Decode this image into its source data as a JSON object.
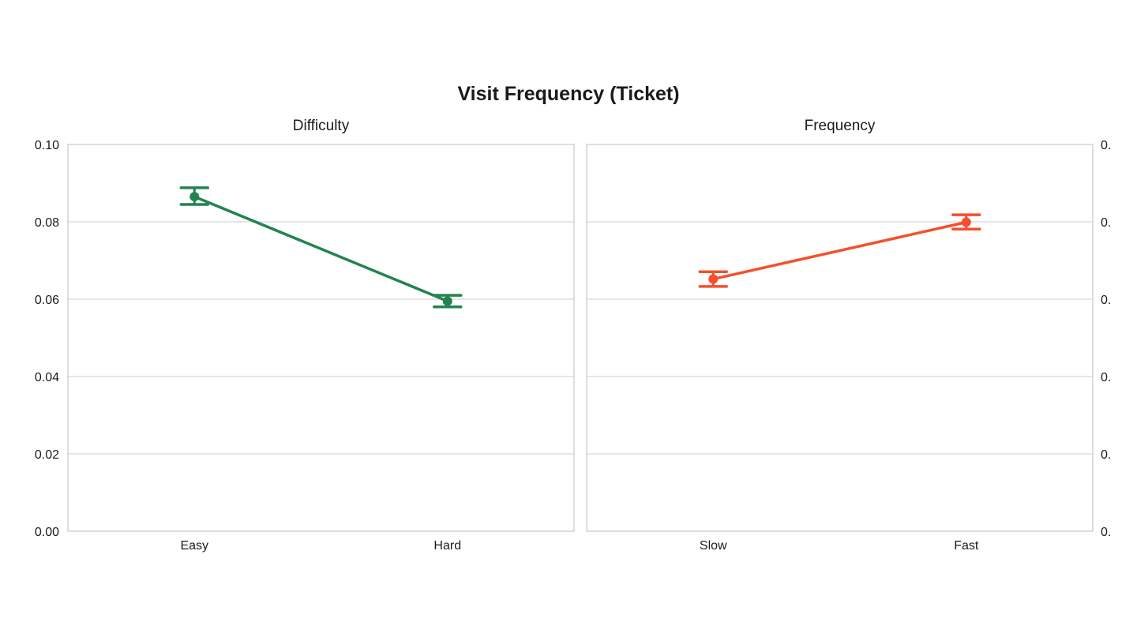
{
  "figure": {
    "title": "Visit Frequency (Ticket)"
  },
  "chart_data": [
    {
      "type": "line",
      "title": "Difficulty",
      "categories": [
        "Easy",
        "Hard"
      ],
      "values": [
        0.0865,
        0.0595
      ],
      "error_low": [
        0.0845,
        0.058
      ],
      "error_high": [
        0.0888,
        0.061
      ],
      "ylim": [
        0,
        0.1
      ],
      "yticks": [
        "0.00",
        "0.02",
        "0.04",
        "0.06",
        "0.08",
        "0.10"
      ],
      "ytick_side": "left",
      "grid": true,
      "color": "#23834e",
      "xlabel": "",
      "ylabel": ""
    },
    {
      "type": "line",
      "title": "Frequency",
      "categories": [
        "Slow",
        "Fast"
      ],
      "values": [
        0.0652,
        0.0799
      ],
      "error_low": [
        0.0633,
        0.0781
      ],
      "error_high": [
        0.0671,
        0.0818
      ],
      "ylim": [
        0,
        0.1
      ],
      "yticks": [
        "0.",
        "0.",
        "0.",
        "0.",
        "0.",
        "0."
      ],
      "ytick_side": "right",
      "grid": true,
      "color": "#f4502d",
      "xlabel": "",
      "ylabel": ""
    }
  ]
}
